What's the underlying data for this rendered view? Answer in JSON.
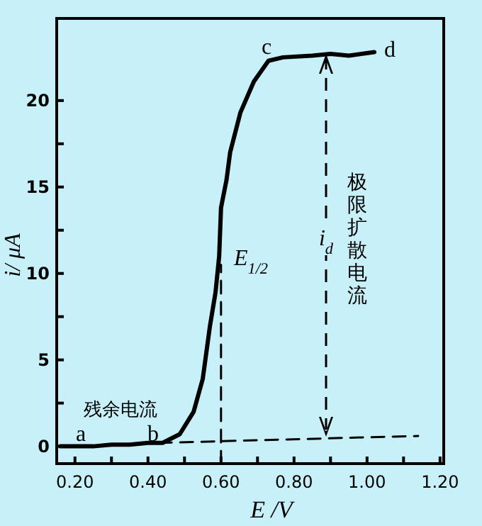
{
  "chart_data": {
    "type": "line",
    "xlabel": "E /V",
    "ylabel": "i/ μA",
    "xlim": [
      0.15,
      1.21
    ],
    "ylim": [
      -1,
      24.75
    ],
    "xticks": [
      {
        "value": 0.2,
        "label": "0.20"
      },
      {
        "value": 0.3,
        "label": null
      },
      {
        "value": 0.4,
        "label": "0.40"
      },
      {
        "value": 0.5,
        "label": null
      },
      {
        "value": 0.6,
        "label": "0.60"
      },
      {
        "value": 0.7,
        "label": null
      },
      {
        "value": 0.8,
        "label": "0.80"
      },
      {
        "value": 0.9,
        "label": null
      },
      {
        "value": 1.0,
        "label": "1.00"
      },
      {
        "value": 1.1,
        "label": null
      },
      {
        "value": 1.2,
        "label": "1.20"
      }
    ],
    "yticks": [
      0,
      {
        "value": 2.5,
        "label": null
      },
      5,
      {
        "value": 7.5,
        "label": null
      },
      10,
      {
        "value": 12.5,
        "label": null
      },
      15,
      {
        "value": 17.5,
        "label": null
      },
      20
    ],
    "series": [
      {
        "color": "#000000",
        "line_style": "solid",
        "x": [
          0.16,
          0.2,
          0.25,
          0.3,
          0.35,
          0.4,
          0.44,
          0.487,
          0.525,
          0.55,
          0.57,
          0.585,
          0.595,
          0.6,
          0.615,
          0.625,
          0.653,
          0.69,
          0.73,
          0.77,
          0.85,
          0.9,
          0.95,
          1.02
        ],
        "values": [
          0,
          0,
          0,
          0.1,
          0.1,
          0.2,
          0.2,
          0.7,
          2.0,
          3.9,
          7.0,
          8.9,
          11.0,
          13.8,
          15.4,
          17.0,
          19.3,
          21.1,
          22.3,
          22.5,
          22.6,
          22.7,
          22.6,
          22.8
        ]
      },
      {
        "color": "#000000",
        "line_style": "dashed",
        "x": [
          0.43,
          1.14
        ],
        "values": [
          0.2,
          0.6
        ]
      },
      {
        "color": "#000000",
        "line_style": "dashed",
        "x": [
          0.6,
          0.6
        ],
        "values": [
          -1,
          10.5
        ]
      }
    ],
    "annotations": [
      "a",
      "b",
      "c",
      "d",
      "残余电流",
      "E$_{1/2}$",
      "i$_{d}$",
      "极限扩散电流"
    ]
  }
}
